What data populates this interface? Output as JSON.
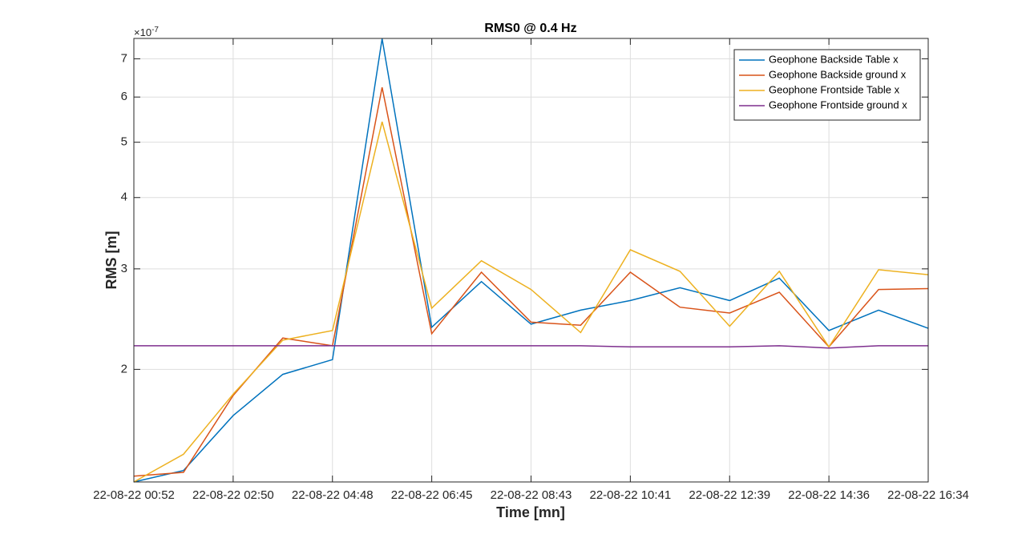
{
  "chart_data": {
    "type": "line",
    "title": "RMS0 @ 0.4 Hz",
    "x_label": "Time [mn]",
    "y_label": "RMS [m]",
    "y_multiplier": "×10",
    "y_exponent": "-7",
    "categories": [
      "22-08-22 00:52",
      null,
      "22-08-22 02:50",
      null,
      "22-08-22 04:48",
      null,
      "22-08-22 06:45",
      null,
      "22-08-22 08:43",
      null,
      "22-08-22 10:41",
      null,
      "22-08-22 12:39",
      null,
      "22-08-22 14:36",
      null,
      "22-08-22 16:34"
    ],
    "series": [
      {
        "name": "Geophone Backside Table x",
        "color": "#0072BD",
        "values": [
          1.27,
          1.33,
          1.66,
          1.96,
          2.08,
          7.59,
          2.37,
          2.85,
          2.4,
          2.54,
          2.64,
          2.78,
          2.64,
          2.89,
          2.34,
          2.54,
          2.36
        ]
      },
      {
        "name": "Geophone Backside ground x",
        "color": "#D95319",
        "values": [
          1.3,
          1.32,
          1.8,
          2.27,
          2.2,
          6.24,
          2.31,
          2.96,
          2.42,
          2.39,
          2.96,
          2.57,
          2.51,
          2.73,
          2.19,
          2.76,
          2.77
        ]
      },
      {
        "name": "Geophone Frontside Table x",
        "color": "#EDB120",
        "values": [
          1.27,
          1.42,
          1.81,
          2.25,
          2.34,
          5.43,
          2.56,
          3.1,
          2.76,
          2.32,
          3.24,
          2.97,
          2.38,
          2.97,
          2.19,
          2.99,
          2.93
        ]
      },
      {
        "name": "Geophone Frontside ground x",
        "color": "#7E2F8E",
        "values": [
          2.2,
          2.2,
          2.2,
          2.2,
          2.2,
          2.2,
          2.2,
          2.2,
          2.2,
          2.2,
          2.19,
          2.19,
          2.19,
          2.2,
          2.18,
          2.2,
          2.2
        ]
      }
    ],
    "ylim": [
      1.27,
      7.6
    ],
    "yticks": [
      2,
      3,
      4,
      5,
      6,
      7
    ],
    "log_y": true,
    "grid": true,
    "legend": "northeast"
  }
}
